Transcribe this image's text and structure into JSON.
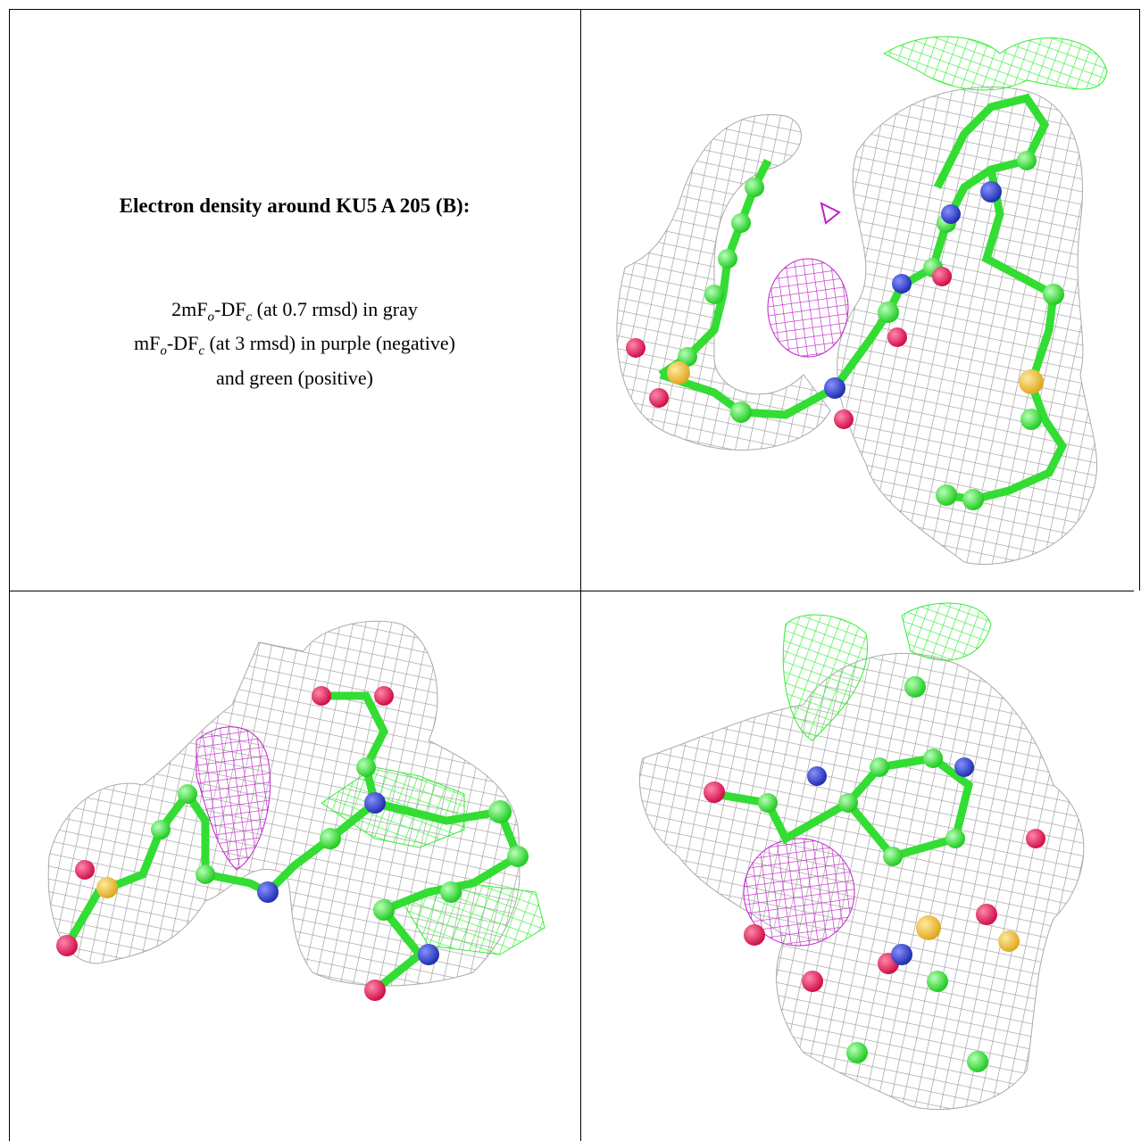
{
  "caption": {
    "title": "Electron density around KU5 A 205 (B):",
    "lines": [
      [
        "2mF",
        "o",
        "-DF",
        "c",
        " (at 0.7 rmsd) in gray"
      ],
      [
        "mF",
        "o",
        "-DF",
        "c",
        " (at 3 rmsd) in purple (negative)"
      ],
      [
        "and green (positive)"
      ]
    ]
  }
}
